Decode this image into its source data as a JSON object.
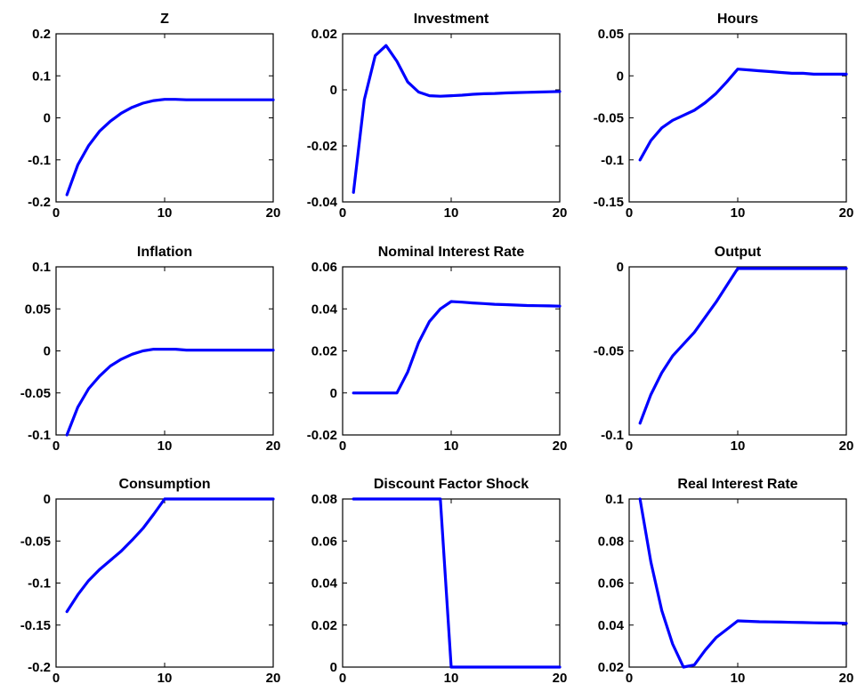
{
  "figure": {
    "line_color": "#0000ff"
  },
  "chart_data": [
    {
      "type": "line",
      "title": "Z",
      "xlim": [
        0,
        20
      ],
      "ylim": [
        -0.2,
        0.2
      ],
      "xticks": [
        0,
        10,
        20
      ],
      "yticks": [
        0.2,
        0.1,
        0,
        -0.1,
        -0.2
      ],
      "xtick_labels": [
        "0",
        "10",
        "20"
      ],
      "ytick_labels": [
        "0.2",
        "0.1",
        "0",
        "-0.1",
        "-0.2"
      ],
      "x": [
        1,
        2,
        3,
        4,
        5,
        6,
        7,
        8,
        9,
        10,
        11,
        12,
        13,
        14,
        15,
        16,
        17,
        18,
        19,
        20
      ],
      "y": [
        -0.183,
        -0.112,
        -0.066,
        -0.032,
        -0.008,
        0.011,
        0.025,
        0.035,
        0.041,
        0.044,
        0.044,
        0.043,
        0.043,
        0.043,
        0.043,
        0.043,
        0.043,
        0.043,
        0.043,
        0.043
      ]
    },
    {
      "type": "line",
      "title": "Investment",
      "xlim": [
        0,
        20
      ],
      "ylim": [
        -0.04,
        0.02
      ],
      "xticks": [
        0,
        10,
        20
      ],
      "yticks": [
        0.02,
        0,
        -0.02,
        -0.04
      ],
      "xtick_labels": [
        "0",
        "10",
        "20"
      ],
      "ytick_labels": [
        "0.02",
        "0",
        "-0.02",
        "-0.04"
      ],
      "x": [
        1,
        2,
        3,
        4,
        5,
        6,
        7,
        8,
        9,
        10,
        11,
        12,
        13,
        14,
        15,
        16,
        17,
        18,
        19,
        20
      ],
      "y": [
        -0.0366,
        -0.0035,
        0.0122,
        0.0158,
        0.0102,
        0.0028,
        -0.0008,
        -0.0021,
        -0.0023,
        -0.0021,
        -0.0019,
        -0.0016,
        -0.0014,
        -0.0013,
        -0.0011,
        -0.001,
        -0.0009,
        -0.0008,
        -0.0007,
        -0.0006
      ]
    },
    {
      "type": "line",
      "title": "Hours",
      "xlim": [
        0,
        20
      ],
      "ylim": [
        -0.15,
        0.05
      ],
      "xticks": [
        0,
        10,
        20
      ],
      "yticks": [
        0.05,
        0,
        -0.05,
        -0.1,
        -0.15
      ],
      "xtick_labels": [
        "0",
        "10",
        "20"
      ],
      "ytick_labels": [
        "0.05",
        "0",
        "-0.05",
        "-0.1",
        "-0.15"
      ],
      "x": [
        1,
        2,
        3,
        4,
        5,
        6,
        7,
        8,
        9,
        10,
        11,
        12,
        13,
        14,
        15,
        16,
        17,
        18,
        19,
        20
      ],
      "y": [
        -0.1,
        -0.077,
        -0.062,
        -0.053,
        -0.047,
        -0.041,
        -0.032,
        -0.021,
        -0.007,
        0.008,
        0.007,
        0.006,
        0.005,
        0.004,
        0.003,
        0.003,
        0.002,
        0.002,
        0.002,
        0.002
      ]
    },
    {
      "type": "line",
      "title": "Inflation",
      "xlim": [
        0,
        20
      ],
      "ylim": [
        -0.1,
        0.1
      ],
      "xticks": [
        0,
        10,
        20
      ],
      "yticks": [
        0.1,
        0.05,
        0,
        -0.05,
        -0.1
      ],
      "xtick_labels": [
        "0",
        "10",
        "20"
      ],
      "ytick_labels": [
        "0.1",
        "0.05",
        "0",
        "-0.05",
        "-0.1"
      ],
      "x": [
        1,
        2,
        3,
        4,
        5,
        6,
        7,
        8,
        9,
        10,
        11,
        12,
        13,
        14,
        15,
        16,
        17,
        18,
        19,
        20
      ],
      "y": [
        -0.1,
        -0.067,
        -0.045,
        -0.03,
        -0.018,
        -0.01,
        -0.004,
        0,
        0.002,
        0.002,
        0.002,
        0.001,
        0.001,
        0.001,
        0.001,
        0.001,
        0.001,
        0.001,
        0.001,
        0.001
      ]
    },
    {
      "type": "line",
      "title": "Nominal Interest Rate",
      "xlim": [
        0,
        20
      ],
      "ylim": [
        -0.02,
        0.06
      ],
      "xticks": [
        0,
        10,
        20
      ],
      "yticks": [
        0.06,
        0.04,
        0.02,
        0,
        -0.02
      ],
      "xtick_labels": [
        "0",
        "10",
        "20"
      ],
      "ytick_labels": [
        "0.06",
        "0.04",
        "0.02",
        "0",
        "-0.02"
      ],
      "x": [
        1,
        2,
        3,
        4,
        5,
        6,
        7,
        8,
        9,
        10,
        11,
        12,
        13,
        14,
        15,
        16,
        17,
        18,
        19,
        20
      ],
      "y": [
        0,
        0,
        0,
        0,
        0,
        0.01,
        0.024,
        0.034,
        0.04,
        0.0435,
        0.0432,
        0.0428,
        0.0425,
        0.0422,
        0.042,
        0.0418,
        0.0416,
        0.0415,
        0.0414,
        0.0413
      ]
    },
    {
      "type": "line",
      "title": "Output",
      "xlim": [
        0,
        20
      ],
      "ylim": [
        -0.1,
        0
      ],
      "xticks": [
        0,
        10,
        20
      ],
      "yticks": [
        0,
        -0.05,
        -0.1
      ],
      "xtick_labels": [
        "0",
        "10",
        "20"
      ],
      "ytick_labels": [
        "0",
        "-0.05",
        "-0.1"
      ],
      "x": [
        1,
        2,
        3,
        4,
        5,
        6,
        7,
        8,
        9,
        10,
        11,
        12,
        13,
        14,
        15,
        16,
        17,
        18,
        19,
        20
      ],
      "y": [
        -0.093,
        -0.076,
        -0.063,
        -0.053,
        -0.046,
        -0.039,
        -0.03,
        -0.021,
        -0.011,
        -0.001,
        -0.001,
        -0.001,
        -0.001,
        -0.001,
        -0.001,
        -0.001,
        -0.001,
        -0.001,
        -0.001,
        -0.001
      ]
    },
    {
      "type": "line",
      "title": "Consumption",
      "xlim": [
        0,
        20
      ],
      "ylim": [
        -0.2,
        0
      ],
      "xticks": [
        0,
        10,
        20
      ],
      "yticks": [
        0,
        -0.05,
        -0.1,
        -0.15,
        -0.2
      ],
      "xtick_labels": [
        "0",
        "10",
        "20"
      ],
      "ytick_labels": [
        "0",
        "-0.05",
        "-0.1",
        "-0.15",
        "-0.2"
      ],
      "x": [
        1,
        2,
        3,
        4,
        5,
        6,
        7,
        8,
        9,
        10,
        11,
        12,
        13,
        14,
        15,
        16,
        17,
        18,
        19,
        20
      ],
      "y": [
        -0.134,
        -0.114,
        -0.097,
        -0.084,
        -0.073,
        -0.062,
        -0.049,
        -0.035,
        -0.018,
        0,
        0,
        0,
        0,
        0,
        0,
        0,
        0,
        0,
        0,
        0
      ]
    },
    {
      "type": "line",
      "title": "Discount Factor Shock",
      "xlim": [
        0,
        20
      ],
      "ylim": [
        0,
        0.08
      ],
      "xticks": [
        0,
        10,
        20
      ],
      "yticks": [
        0.08,
        0.06,
        0.04,
        0.02,
        0
      ],
      "xtick_labels": [
        "0",
        "10",
        "20"
      ],
      "ytick_labels": [
        "0.08",
        "0.06",
        "0.04",
        "0.02",
        "0"
      ],
      "x": [
        1,
        2,
        3,
        4,
        5,
        6,
        7,
        8,
        9,
        10,
        11,
        12,
        13,
        14,
        15,
        16,
        17,
        18,
        19,
        20
      ],
      "y": [
        0.08,
        0.08,
        0.08,
        0.08,
        0.08,
        0.08,
        0.08,
        0.08,
        0.08,
        0,
        0,
        0,
        0,
        0,
        0,
        0,
        0,
        0,
        0,
        0
      ]
    },
    {
      "type": "line",
      "title": "Real Interest Rate",
      "xlim": [
        0,
        20
      ],
      "ylim": [
        0.02,
        0.1
      ],
      "xticks": [
        0,
        10,
        20
      ],
      "yticks": [
        0.1,
        0.08,
        0.06,
        0.04,
        0.02
      ],
      "xtick_labels": [
        "0",
        "10",
        "20"
      ],
      "ytick_labels": [
        "0.1",
        "0.08",
        "0.06",
        "0.04",
        "0.02"
      ],
      "x": [
        1,
        2,
        3,
        4,
        5,
        6,
        7,
        8,
        9,
        10,
        11,
        12,
        13,
        14,
        15,
        16,
        17,
        18,
        19,
        20
      ],
      "y": [
        0.1,
        0.07,
        0.047,
        0.031,
        0.02,
        0.021,
        0.028,
        0.034,
        0.038,
        0.042,
        0.0418,
        0.0416,
        0.0415,
        0.0414,
        0.0413,
        0.0412,
        0.0411,
        0.041,
        0.041,
        0.0408
      ]
    }
  ]
}
